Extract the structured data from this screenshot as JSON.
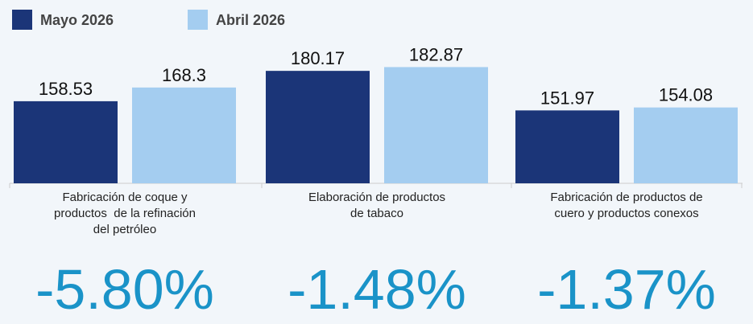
{
  "chart_data": {
    "type": "bar",
    "categories": [
      "Fabricación de coque y\nproductos  de la refinación\ndel petróleo",
      "Elaboración de productos\nde tabaco",
      "Fabricación de productos de\ncuero y productos conexos"
    ],
    "series": [
      {
        "name": "Mayo 2026",
        "color": "#1b3578",
        "values": [
          158.53,
          180.17,
          151.97
        ]
      },
      {
        "name": "Abril 2026",
        "color": "#a4cdf0",
        "values": [
          168.3,
          182.87,
          154.08
        ]
      }
    ],
    "ylim": [
      100,
      190
    ],
    "annotations": [
      "-5.80%",
      "-1.48%",
      "-1.37%"
    ]
  }
}
